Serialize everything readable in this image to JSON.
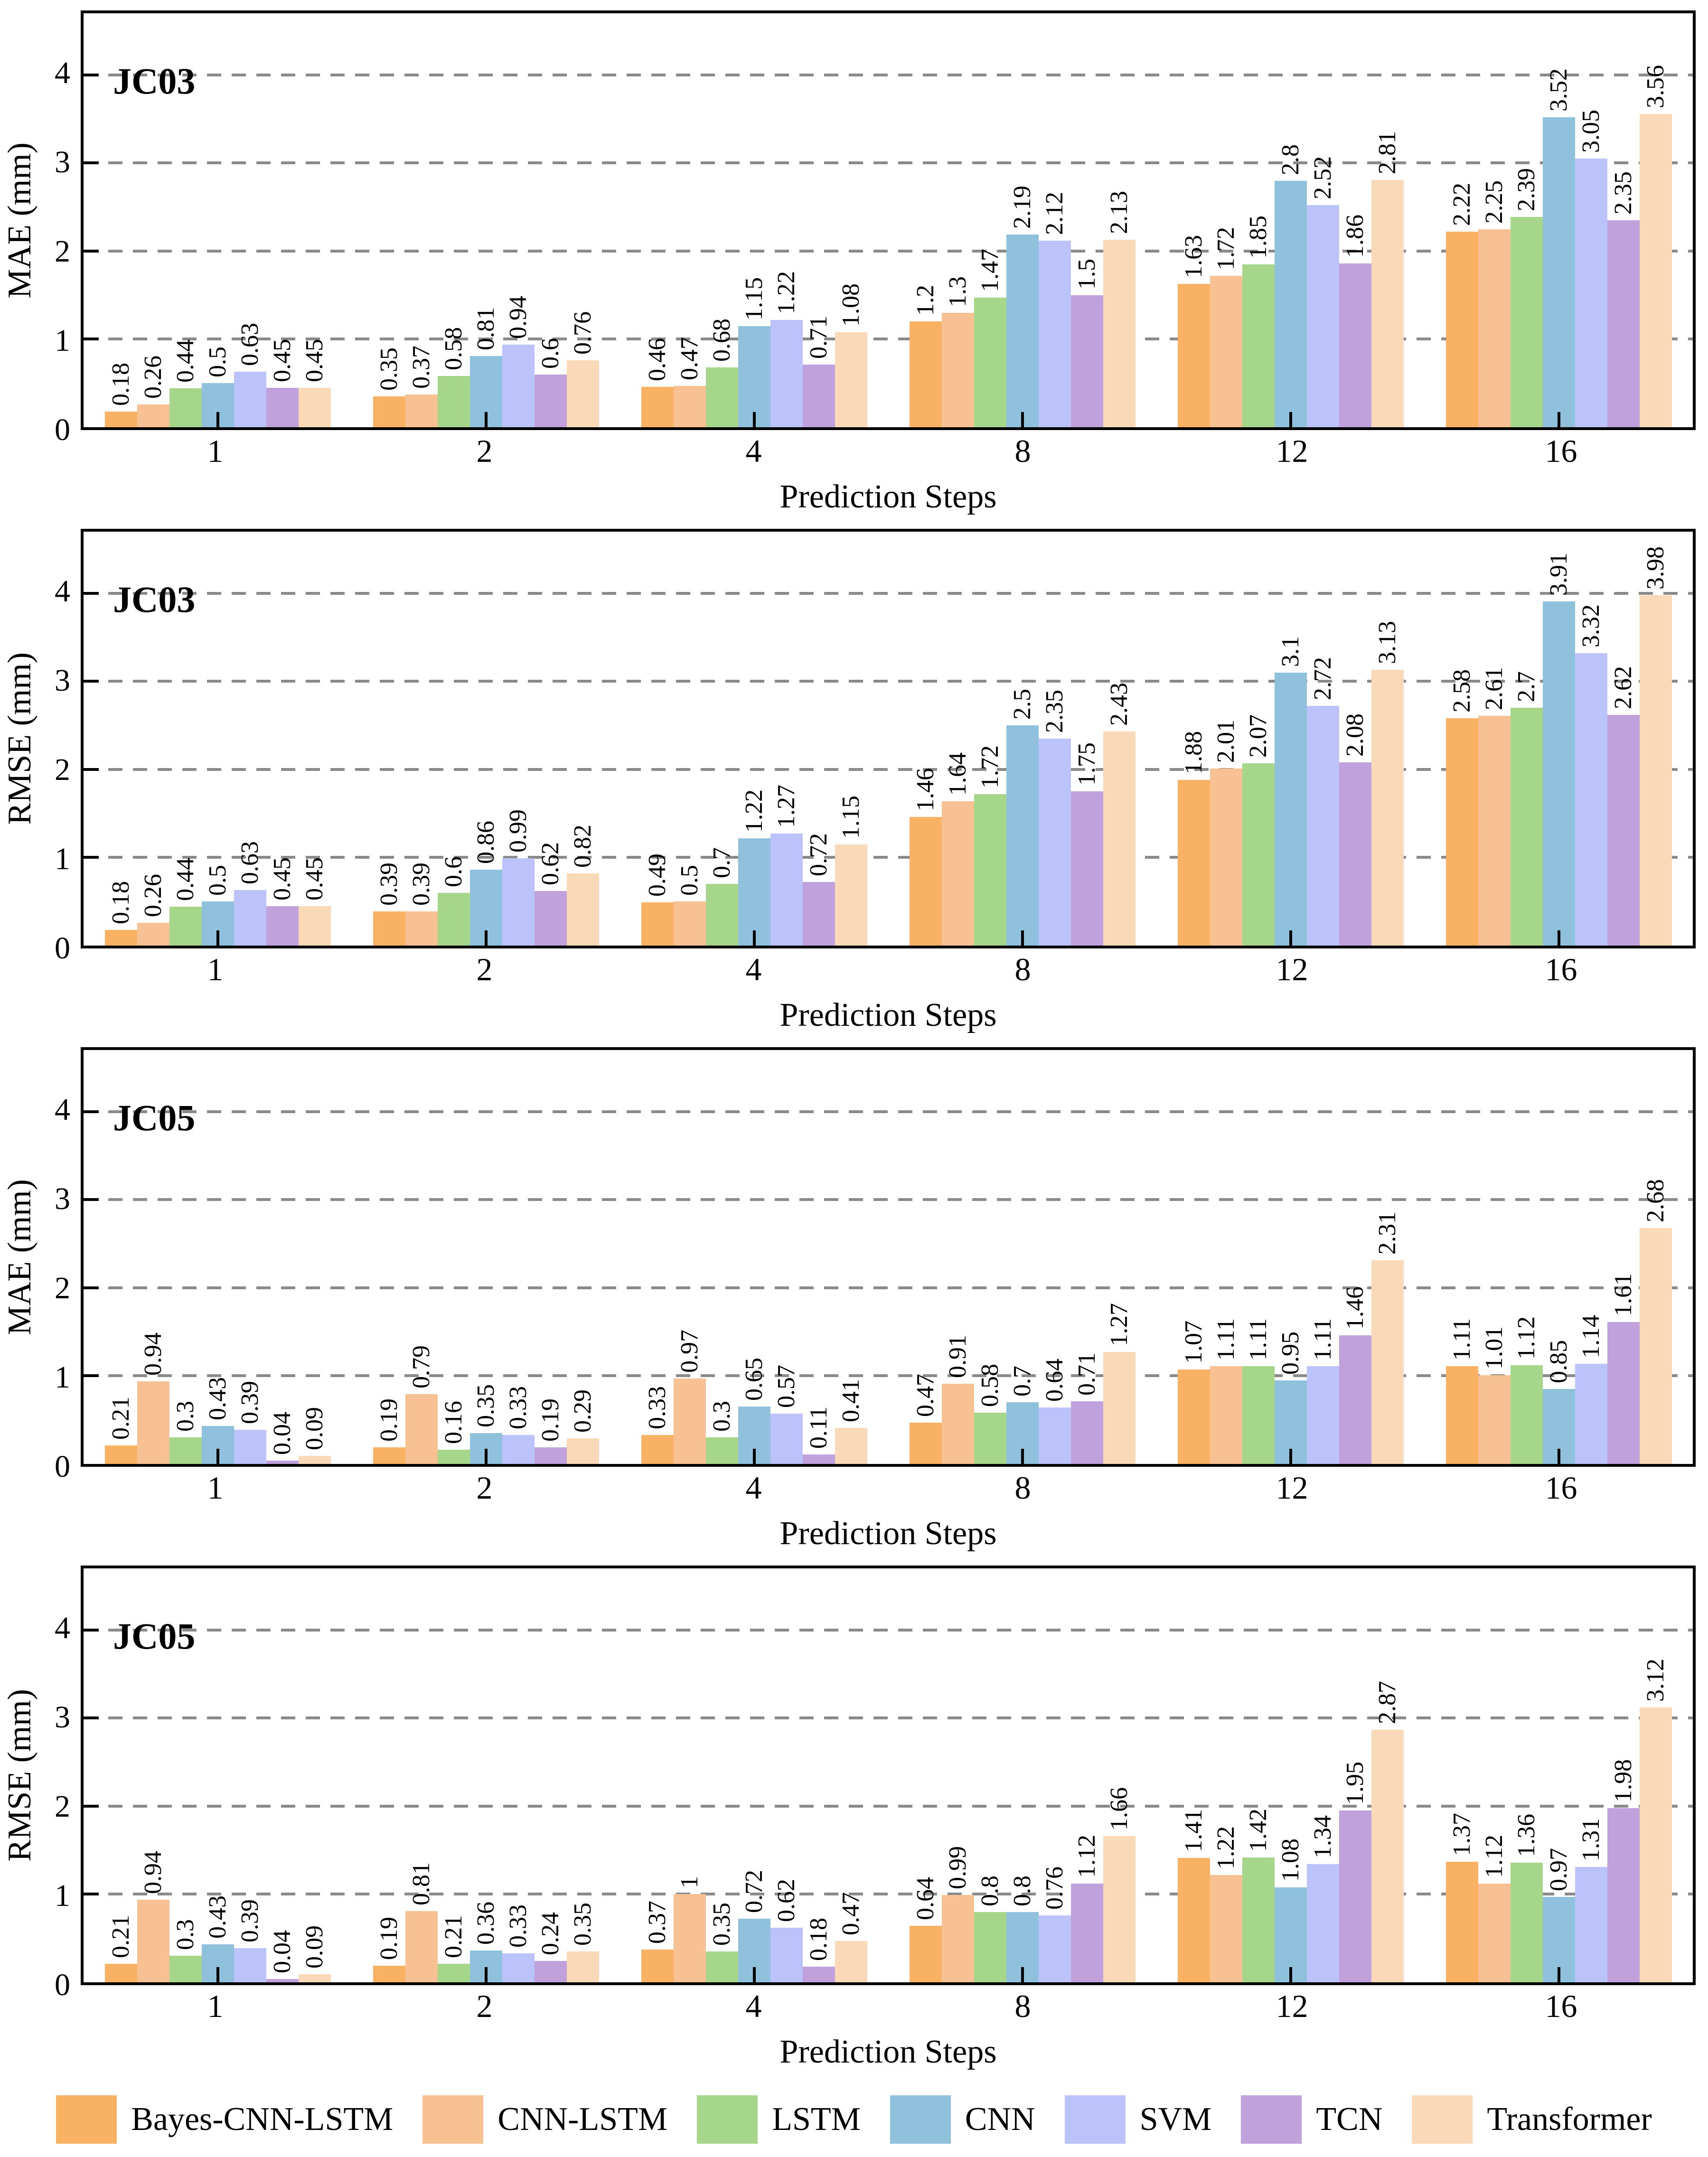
{
  "figure": {
    "x_axis_title": "Prediction Steps",
    "x_tick_labels": [
      "1",
      "2",
      "4",
      "8",
      "12",
      "16"
    ],
    "y_tick_values": [
      0,
      1,
      2,
      3,
      4
    ],
    "y_tick_labels": [
      "0",
      "1",
      "2",
      "3",
      "4"
    ],
    "grid_values": [
      1,
      2,
      3,
      4
    ],
    "ylim": [
      0,
      4.7
    ],
    "colors": {
      "grid": "#8a8a8a",
      "spine": "#000000",
      "background": "#ffffff",
      "text": "#000000"
    }
  },
  "legend": {
    "items": [
      {
        "label": "Bayes-CNN-LSTM",
        "color": "#F9B264"
      },
      {
        "label": "CNN-LSTM",
        "color": "#F7C193"
      },
      {
        "label": "LSTM",
        "color": "#A5D689"
      },
      {
        "label": "CNN",
        "color": "#8FC1DC"
      },
      {
        "label": "SVM",
        "color": "#BCC3FB"
      },
      {
        "label": "TCN",
        "color": "#C0A1DB"
      },
      {
        "label": "Transformer",
        "color": "#FAD9B9"
      }
    ]
  },
  "chart_data": [
    {
      "type": "bar",
      "panel_label": "JC03",
      "ylabel": "MAE (mm)",
      "xlabel": "Prediction Steps",
      "categories": [
        "1",
        "2",
        "4",
        "8",
        "12",
        "16"
      ],
      "ylim": [
        0,
        4.7
      ],
      "grid_values": [
        1,
        2,
        3,
        4
      ],
      "legend_position": "none",
      "series": [
        {
          "name": "Bayes-CNN-LSTM",
          "color": "#F9B264",
          "values": [
            0.18,
            0.35,
            0.46,
            1.2,
            1.63,
            2.22
          ]
        },
        {
          "name": "CNN-LSTM",
          "color": "#F7C193",
          "values": [
            0.26,
            0.37,
            0.47,
            1.3,
            1.72,
            2.25
          ]
        },
        {
          "name": "LSTM",
          "color": "#A5D689",
          "values": [
            0.44,
            0.58,
            0.68,
            1.47,
            1.85,
            2.39
          ]
        },
        {
          "name": "CNN",
          "color": "#8FC1DC",
          "values": [
            0.5,
            0.81,
            1.15,
            2.19,
            2.8,
            3.52
          ]
        },
        {
          "name": "SVM",
          "color": "#BCC3FB",
          "values": [
            0.63,
            0.94,
            1.22,
            2.12,
            2.52,
            3.05
          ]
        },
        {
          "name": "TCN",
          "color": "#C0A1DB",
          "values": [
            0.45,
            0.6,
            0.71,
            1.5,
            1.86,
            2.35
          ]
        },
        {
          "name": "Transformer",
          "color": "#FAD9B9",
          "values": [
            0.45,
            0.76,
            1.08,
            2.13,
            2.81,
            3.56
          ]
        }
      ]
    },
    {
      "type": "bar",
      "panel_label": "JC03",
      "ylabel": "RMSE (mm)",
      "xlabel": "Prediction Steps",
      "categories": [
        "1",
        "2",
        "4",
        "8",
        "12",
        "16"
      ],
      "ylim": [
        0,
        4.7
      ],
      "grid_values": [
        1,
        2,
        3,
        4
      ],
      "legend_position": "none",
      "series": [
        {
          "name": "Bayes-CNN-LSTM",
          "color": "#F9B264",
          "values": [
            0.18,
            0.39,
            0.49,
            1.46,
            1.88,
            2.58
          ]
        },
        {
          "name": "CNN-LSTM",
          "color": "#F7C193",
          "values": [
            0.26,
            0.39,
            0.5,
            1.64,
            2.01,
            2.61
          ]
        },
        {
          "name": "LSTM",
          "color": "#A5D689",
          "values": [
            0.44,
            0.6,
            0.7,
            1.72,
            2.07,
            2.7
          ]
        },
        {
          "name": "CNN",
          "color": "#8FC1DC",
          "values": [
            0.5,
            0.86,
            1.22,
            2.5,
            3.1,
            3.91
          ]
        },
        {
          "name": "SVM",
          "color": "#BCC3FB",
          "values": [
            0.63,
            0.99,
            1.27,
            2.35,
            2.72,
            3.32
          ]
        },
        {
          "name": "TCN",
          "color": "#C0A1DB",
          "values": [
            0.45,
            0.62,
            0.72,
            1.75,
            2.08,
            2.62
          ]
        },
        {
          "name": "Transformer",
          "color": "#FAD9B9",
          "values": [
            0.45,
            0.82,
            1.15,
            2.43,
            3.13,
            3.98
          ]
        }
      ]
    },
    {
      "type": "bar",
      "panel_label": "JC05",
      "ylabel": "MAE (mm)",
      "xlabel": "Prediction Steps",
      "categories": [
        "1",
        "2",
        "4",
        "8",
        "12",
        "16"
      ],
      "ylim": [
        0,
        4.7
      ],
      "grid_values": [
        1,
        2,
        3,
        4
      ],
      "legend_position": "none",
      "series": [
        {
          "name": "Bayes-CNN-LSTM",
          "color": "#F9B264",
          "values": [
            0.21,
            0.19,
            0.33,
            0.47,
            1.07,
            1.11
          ]
        },
        {
          "name": "CNN-LSTM",
          "color": "#F7C193",
          "values": [
            0.94,
            0.79,
            0.97,
            0.91,
            1.11,
            1.01
          ]
        },
        {
          "name": "LSTM",
          "color": "#A5D689",
          "values": [
            0.3,
            0.16,
            0.3,
            0.58,
            1.11,
            1.12
          ]
        },
        {
          "name": "CNN",
          "color": "#8FC1DC",
          "values": [
            0.43,
            0.35,
            0.65,
            0.7,
            0.95,
            0.85
          ]
        },
        {
          "name": "SVM",
          "color": "#BCC3FB",
          "values": [
            0.39,
            0.33,
            0.57,
            0.64,
            1.11,
            1.14
          ]
        },
        {
          "name": "TCN",
          "color": "#C0A1DB",
          "values": [
            0.04,
            0.19,
            0.11,
            0.71,
            1.46,
            1.61
          ]
        },
        {
          "name": "Transformer",
          "color": "#FAD9B9",
          "values": [
            0.09,
            0.29,
            0.41,
            1.27,
            2.31,
            2.68
          ]
        }
      ]
    },
    {
      "type": "bar",
      "panel_label": "JC05",
      "ylabel": "RMSE (mm)",
      "xlabel": "Prediction Steps",
      "categories": [
        "1",
        "2",
        "4",
        "8",
        "12",
        "16"
      ],
      "ylim": [
        0,
        4.7
      ],
      "grid_values": [
        1,
        2,
        3,
        4
      ],
      "legend_position": "none",
      "series": [
        {
          "name": "Bayes-CNN-LSTM",
          "color": "#F9B264",
          "values": [
            0.21,
            0.19,
            0.37,
            0.64,
            1.41,
            1.37
          ]
        },
        {
          "name": "CNN-LSTM",
          "color": "#F7C193",
          "values": [
            0.94,
            0.81,
            1,
            0.99,
            1.22,
            1.12
          ]
        },
        {
          "name": "LSTM",
          "color": "#A5D689",
          "values": [
            0.3,
            0.21,
            0.35,
            0.8,
            1.42,
            1.36
          ]
        },
        {
          "name": "CNN",
          "color": "#8FC1DC",
          "values": [
            0.43,
            0.36,
            0.72,
            0.8,
            1.08,
            0.97
          ]
        },
        {
          "name": "SVM",
          "color": "#BCC3FB",
          "values": [
            0.39,
            0.33,
            0.62,
            0.76,
            1.34,
            1.31
          ]
        },
        {
          "name": "TCN",
          "color": "#C0A1DB",
          "values": [
            0.04,
            0.24,
            0.18,
            1.12,
            1.95,
            1.98
          ]
        },
        {
          "name": "Transformer",
          "color": "#FAD9B9",
          "values": [
            0.09,
            0.35,
            0.47,
            1.66,
            2.87,
            3.12
          ]
        }
      ]
    }
  ]
}
